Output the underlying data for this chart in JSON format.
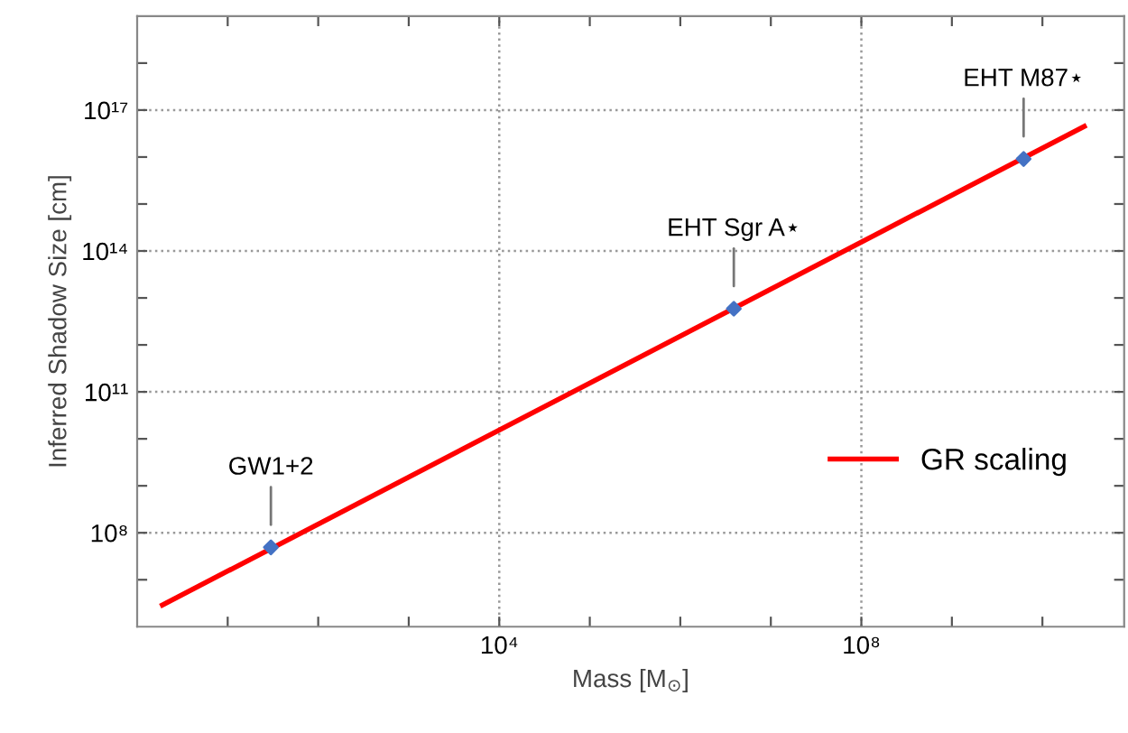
{
  "chart_data": {
    "type": "line",
    "xlabel": "Mass [M$_{⊙}$]",
    "ylabel": "Inferred Shadow Size [cm]",
    "log": "xy",
    "xlim": [
      1,
      80000000000.0
    ],
    "ylim": [
      1000000.0,
      1e+19
    ],
    "xticks": [
      {
        "value": 10,
        "label": null
      },
      {
        "value": 100,
        "label": null
      },
      {
        "value": 1000,
        "label": null
      },
      {
        "value": 10000,
        "label": "10⁴"
      },
      {
        "value": 100000,
        "label": null
      },
      {
        "value": 1000000,
        "label": null
      },
      {
        "value": 10000000,
        "label": null
      },
      {
        "value": 100000000,
        "label": "10⁸"
      },
      {
        "value": 1000000000,
        "label": null
      },
      {
        "value": 10000000000,
        "label": null
      }
    ],
    "yticks": [
      {
        "value": 10000000.0,
        "label": null
      },
      {
        "value": 100000000.0,
        "label": "10⁸"
      },
      {
        "value": 1000000000.0,
        "label": null
      },
      {
        "value": 10000000000.0,
        "label": null
      },
      {
        "value": 100000000000.0,
        "label": "10¹¹"
      },
      {
        "value": 1000000000000.0,
        "label": null
      },
      {
        "value": 10000000000000.0,
        "label": null
      },
      {
        "value": 100000000000000.0,
        "label": "10¹⁴"
      },
      {
        "value": 1000000000000000.0,
        "label": null
      },
      {
        "value": 1e+16,
        "label": null
      },
      {
        "value": 1e+17,
        "label": "10¹⁷"
      },
      {
        "value": 1e+18,
        "label": null
      }
    ],
    "grid": true,
    "legend": "right",
    "series": [
      {
        "name": "GR scaling",
        "color": "#ff0000",
        "x": [
          1.9,
          29000000000.0
        ],
        "values": [
          2900000.0,
          4.5e+16
        ]
      },
      {
        "type": "scatter",
        "color": "#4472c4",
        "marker": "diamond",
        "x": [
          30,
          3900000.0,
          6200000000.0
        ],
        "values": [
          49000000.0,
          5900000000000.0,
          9100000000000000.0
        ]
      }
    ],
    "annotations": [
      {
        "text": "GW1+2",
        "x": 30,
        "y": 49000000.0
      },
      {
        "text": "EHT Sgr A⋆",
        "x": 3900000.0,
        "y": 5900000000000.0
      },
      {
        "text": "EHT M87⋆",
        "x": 6200000000.0,
        "y": 9100000000000000.0
      }
    ]
  }
}
